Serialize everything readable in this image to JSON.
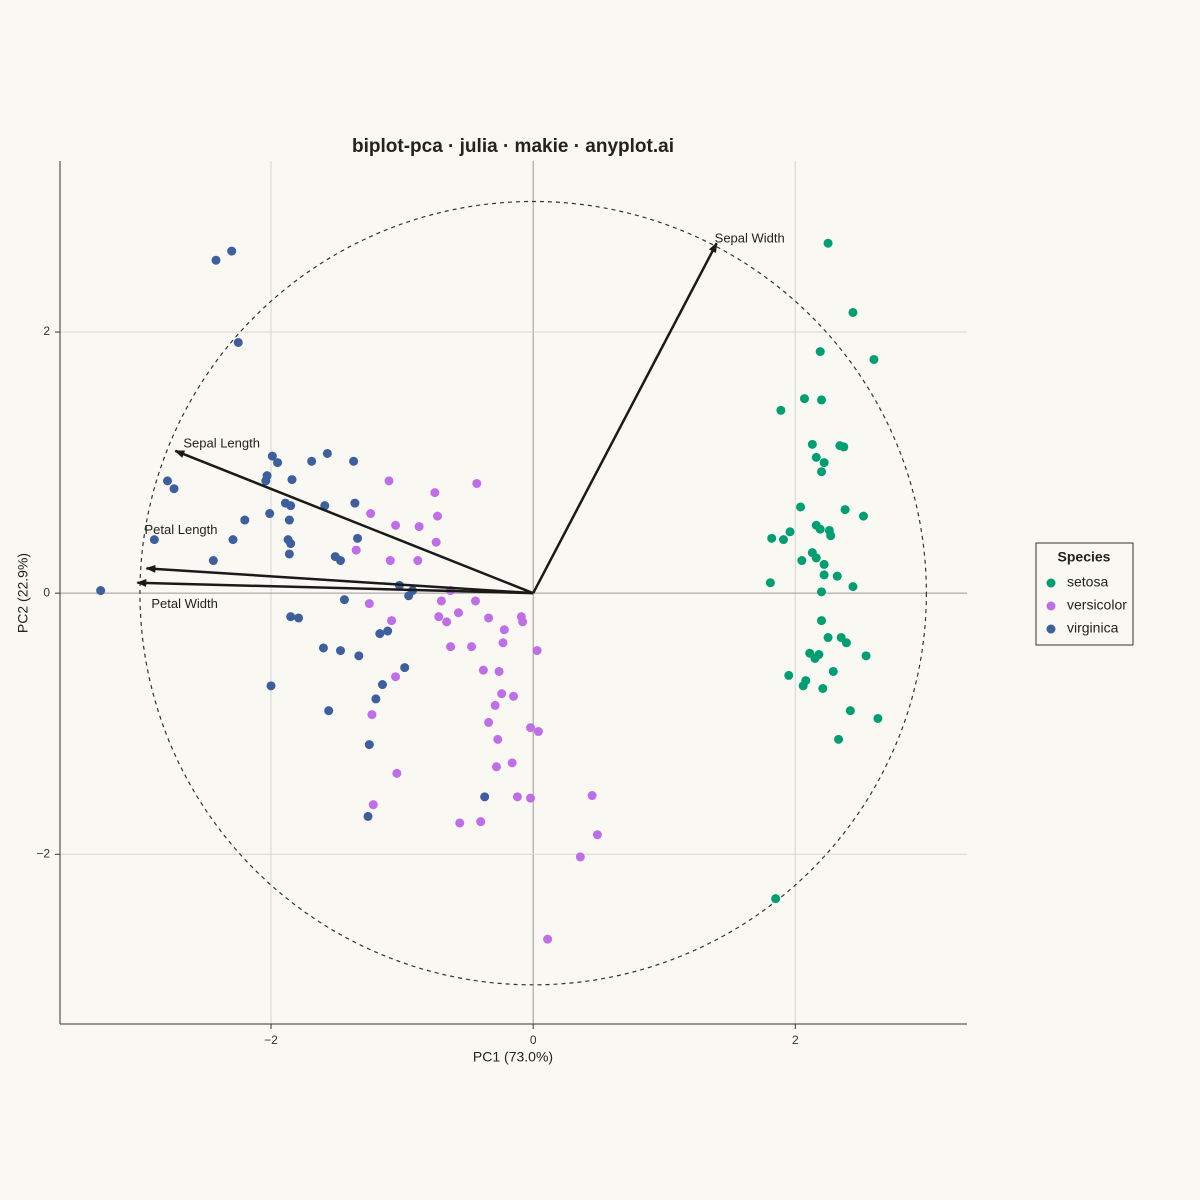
{
  "chart_data": {
    "type": "scatter",
    "title": "biplot-pca · julia · makie · anyplot.ai",
    "x_label": "PC1 (73.0%)",
    "y_label": "PC2 (22.9%)",
    "xlim": [
      -3.61,
      3.31
    ],
    "ylim": [
      -3.3,
      3.31
    ],
    "xticks": [
      {
        "value": -2,
        "label": "−2"
      },
      0,
      2
    ],
    "yticks": [
      {
        "value": -2,
        "label": "−2"
      },
      0,
      2
    ],
    "grid": true,
    "circle_radius": 3,
    "legend": {
      "title": "Species",
      "position": "right"
    },
    "series": [
      {
        "name": "setosa",
        "color": "#009e73",
        "x": [
          2.25,
          2.44,
          2.19,
          2.6,
          1.89,
          2.07,
          2.2,
          2.13,
          2.34,
          2.37,
          2.16,
          2.22,
          2.2,
          2.04,
          2.38,
          2.52,
          2.16,
          2.19,
          2.26,
          2.27,
          1.96,
          1.82,
          1.91,
          2.13,
          2.16,
          2.05,
          2.22,
          2.32,
          2.22,
          2.44,
          1.81,
          2.2,
          2.2,
          2.25,
          2.35,
          2.39,
          2.54,
          2.11,
          2.15,
          2.18,
          1.95,
          2.08,
          2.06,
          2.21,
          2.29,
          2.42,
          2.63,
          2.33,
          1.85
        ],
        "values": [
          2.68,
          2.15,
          1.85,
          1.79,
          1.4,
          1.49,
          1.48,
          1.14,
          1.13,
          1.12,
          1.04,
          1.0,
          0.93,
          0.66,
          0.64,
          0.59,
          0.52,
          0.49,
          0.48,
          0.44,
          0.47,
          0.42,
          0.41,
          0.31,
          0.27,
          0.25,
          0.22,
          0.13,
          0.14,
          0.05,
          0.08,
          0.01,
          -0.21,
          -0.34,
          -0.34,
          -0.38,
          -0.48,
          -0.46,
          -0.5,
          -0.47,
          -0.63,
          -0.67,
          -0.71,
          -0.73,
          -0.6,
          -0.9,
          -0.96,
          -1.12,
          -2.34
        ]
      },
      {
        "name": "versicolor",
        "color": "#bf6ee8",
        "x": [
          -1.1,
          -0.43,
          -0.75,
          -1.24,
          -0.73,
          -1.05,
          -0.87,
          -0.74,
          -1.35,
          -1.09,
          -0.88,
          -0.63,
          -1.25,
          -0.7,
          -0.44,
          -0.57,
          -0.72,
          -0.66,
          -0.34,
          -0.09,
          -0.08,
          -1.08,
          -0.22,
          -0.63,
          -0.47,
          0.03,
          -0.23,
          -0.38,
          -0.26,
          -1.05,
          -0.24,
          -0.15,
          -0.29,
          -1.23,
          -0.34,
          -0.02,
          0.04,
          -0.27,
          -0.16,
          -0.28,
          -1.04,
          -0.12,
          -0.02,
          0.45,
          -1.22,
          -0.4,
          -0.56,
          0.49,
          0.36,
          0.11
        ],
        "values": [
          0.86,
          0.84,
          0.77,
          0.61,
          0.59,
          0.52,
          0.51,
          0.39,
          0.33,
          0.25,
          0.25,
          0.02,
          -0.08,
          -0.06,
          -0.06,
          -0.15,
          -0.18,
          -0.22,
          -0.19,
          -0.18,
          -0.22,
          -0.21,
          -0.28,
          -0.41,
          -0.41,
          -0.44,
          -0.38,
          -0.59,
          -0.6,
          -0.64,
          -0.77,
          -0.79,
          -0.86,
          -0.93,
          -0.99,
          -1.03,
          -1.06,
          -1.12,
          -1.3,
          -1.33,
          -1.38,
          -1.56,
          -1.57,
          -1.55,
          -1.62,
          -1.75,
          -1.76,
          -1.85,
          -2.02,
          -2.65
        ]
      },
      {
        "name": "virginica",
        "color": "#3d5f9e",
        "x": [
          -2.42,
          -2.3,
          -2.25,
          -1.99,
          -1.95,
          -1.69,
          -1.57,
          -1.37,
          -2.03,
          -2.04,
          -1.84,
          -2.79,
          -2.74,
          -1.89,
          -1.85,
          -1.59,
          -1.36,
          -2.01,
          -2.2,
          -1.86,
          -1.34,
          -2.89,
          -2.29,
          -1.87,
          -1.85,
          -1.86,
          -1.51,
          -1.47,
          -2.44,
          -1.02,
          -0.92,
          -0.95,
          -3.3,
          -1.44,
          -1.85,
          -1.79,
          -1.6,
          -1.47,
          -1.33,
          -1.11,
          -1.17,
          -0.98,
          -2.0,
          -1.15,
          -1.2,
          -1.56,
          -1.25,
          -0.37,
          -1.26
        ],
        "values": [
          2.55,
          2.62,
          1.92,
          1.05,
          1.0,
          1.01,
          1.07,
          1.01,
          0.9,
          0.86,
          0.87,
          0.86,
          0.8,
          0.69,
          0.67,
          0.67,
          0.69,
          0.61,
          0.56,
          0.56,
          0.42,
          0.41,
          0.41,
          0.41,
          0.38,
          0.3,
          0.28,
          0.25,
          0.25,
          0.06,
          0.02,
          -0.02,
          0.02,
          -0.05,
          -0.18,
          -0.19,
          -0.42,
          -0.44,
          -0.48,
          -0.29,
          -0.31,
          -0.57,
          -0.71,
          -0.7,
          -0.81,
          -0.9,
          -1.16,
          -1.56,
          -1.71
        ]
      }
    ],
    "loadings": [
      {
        "name": "Sepal Length",
        "x": -2.73,
        "y": 1.09
      },
      {
        "name": "Sepal Width",
        "x": 1.4,
        "y": 2.68
      },
      {
        "name": "Petal Length",
        "x": -2.95,
        "y": 0.19
      },
      {
        "name": "Petal Width",
        "x": -3.02,
        "y": 0.08
      }
    ]
  }
}
